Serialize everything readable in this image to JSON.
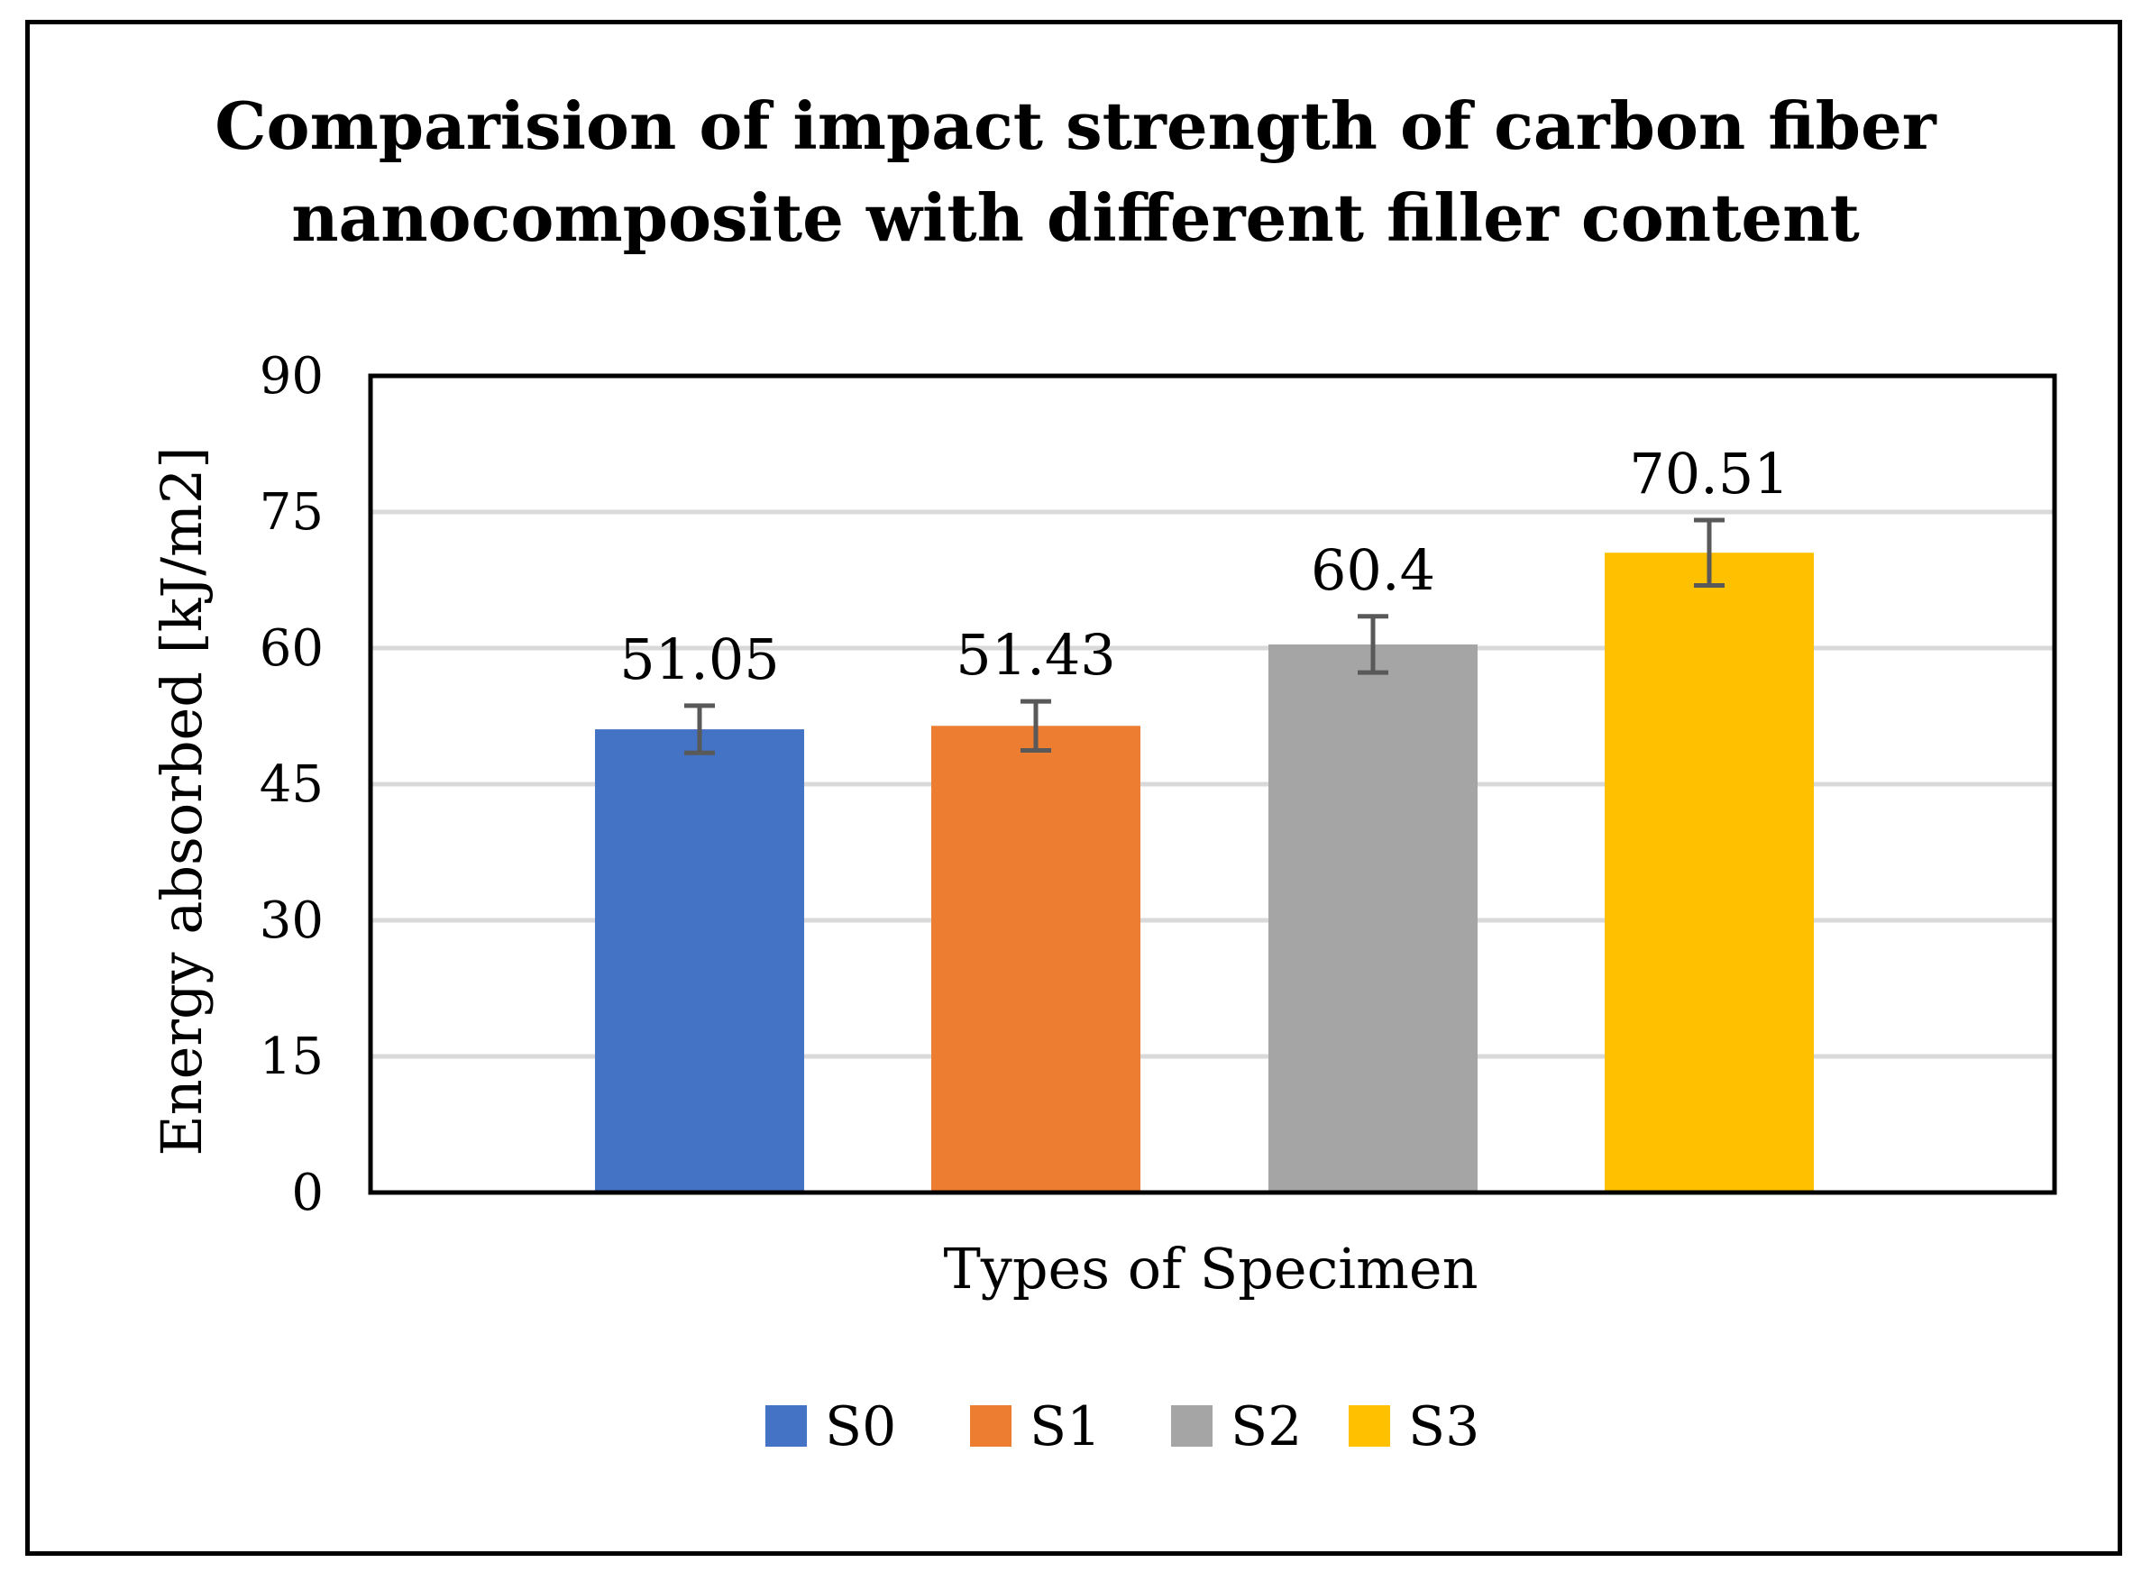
{
  "chart_data": {
    "type": "bar",
    "title_lines": [
      "Comparision of impact strength of carbon fiber",
      "nanocomposite with different filler content"
    ],
    "xlabel": "Types of Specimen",
    "ylabel": "Energy absorbed [kJ/m2]",
    "ylim": [
      0,
      90
    ],
    "yticks": [
      "0",
      "15",
      "30",
      "45",
      "60",
      "75",
      "90"
    ],
    "ytick_values": [
      0,
      15,
      30,
      45,
      60,
      75,
      90
    ],
    "grid": true,
    "legend_position": "bottom",
    "series": [
      {
        "name": "S0",
        "value": 51.05,
        "label": "51.05",
        "error": 2.6,
        "color": "#4472C4"
      },
      {
        "name": "S1",
        "value": 51.43,
        "label": "51.43",
        "error": 2.7,
        "color": "#ED7D31"
      },
      {
        "name": "S2",
        "value": 60.4,
        "label": "60.4",
        "error": 3.1,
        "color": "#A5A5A5"
      },
      {
        "name": "S3",
        "value": 70.51,
        "label": "70.51",
        "error": 3.6,
        "color": "#FFC000"
      }
    ],
    "gridline_color": "#D9D9D9",
    "errorbar_color": "#595959"
  }
}
